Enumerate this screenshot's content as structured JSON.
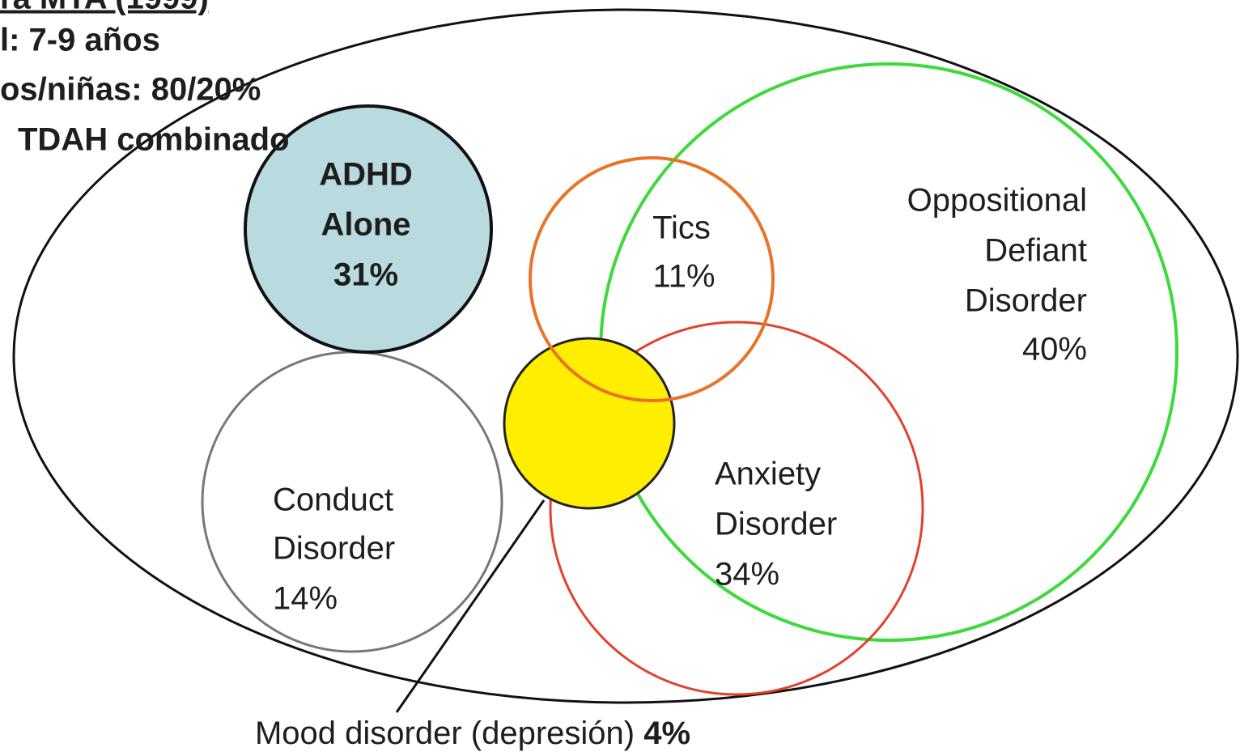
{
  "header": {
    "title": "ra MTA (1999)",
    "lines": [
      "l: 7-9 años",
      "os/niñas: 80/20%",
      "TDAH combinado"
    ]
  },
  "nodes": [
    {
      "lines": [
        "ADHD",
        "Alone",
        "31%"
      ]
    },
    {
      "lines": [
        "Tics",
        "11%"
      ]
    },
    {
      "lines": [
        "Oppositional",
        "Defiant",
        "Disorder",
        "40%"
      ]
    },
    {
      "lines": [
        "Conduct",
        "Disorder",
        "14%"
      ]
    },
    {
      "lines": [
        "Anxiety",
        "Disorder",
        "34%"
      ]
    },
    {
      "lines": [
        "Mood disorder (depresión) ",
        "4%"
      ]
    }
  ]
}
